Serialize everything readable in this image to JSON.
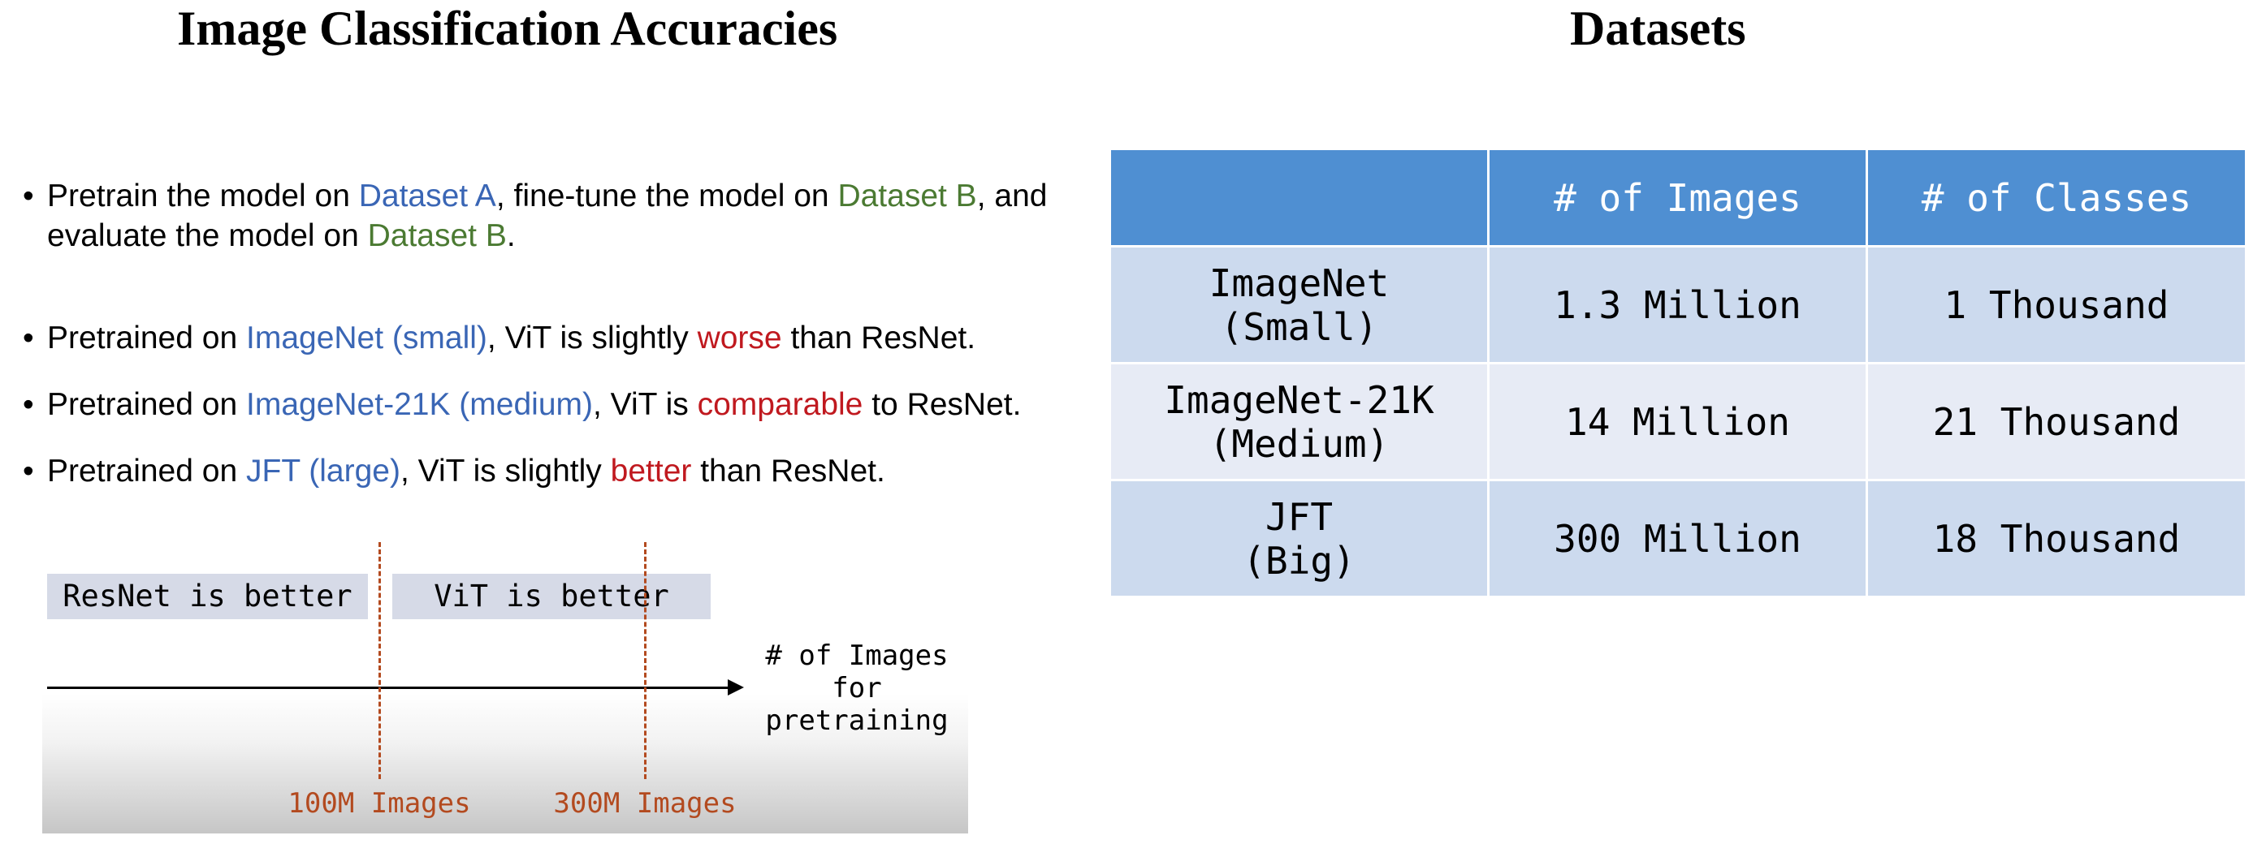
{
  "left": {
    "title": "Image Classification Accuracies",
    "bullets": [
      {
        "dot": "•",
        "segments": [
          {
            "text": "Pretrain the model on ",
            "color": ""
          },
          {
            "text": "Dataset A",
            "color": "blue"
          },
          {
            "text": ", fine-tune the model on ",
            "color": ""
          },
          {
            "text": "Dataset B",
            "color": "green"
          },
          {
            "text": ", and evaluate the model on ",
            "color": ""
          },
          {
            "text": "Dataset B",
            "color": "green"
          },
          {
            "text": ".",
            "color": ""
          }
        ]
      },
      {
        "dot": "•",
        "segments": [
          {
            "text": "Pretrained on ",
            "color": ""
          },
          {
            "text": "ImageNet (small)",
            "color": "blue"
          },
          {
            "text": ", ViT is slightly ",
            "color": ""
          },
          {
            "text": "worse",
            "color": "red"
          },
          {
            "text": " than ResNet.",
            "color": ""
          }
        ]
      },
      {
        "dot": "•",
        "segments": [
          {
            "text": "Pretrained on ",
            "color": ""
          },
          {
            "text": "ImageNet-21K (medium)",
            "color": "blue"
          },
          {
            "text": ", ViT is ",
            "color": ""
          },
          {
            "text": "comparable",
            "color": "red"
          },
          {
            "text": " to ResNet.",
            "color": ""
          }
        ]
      },
      {
        "dot": "•",
        "segments": [
          {
            "text": "Pretrained on ",
            "color": ""
          },
          {
            "text": "JFT (large)",
            "color": "blue"
          },
          {
            "text": ", ViT is slightly ",
            "color": ""
          },
          {
            "text": "better",
            "color": "red"
          },
          {
            "text": " than ResNet.",
            "color": ""
          }
        ]
      }
    ],
    "diagram": {
      "region_left": "ResNet is better",
      "region_right": "ViT is better",
      "axis_label_lines": [
        "# of Images",
        "for",
        "pretraining"
      ],
      "thresholds": [
        "100M Images",
        "300M Images"
      ]
    }
  },
  "right": {
    "title": "Datasets",
    "table": {
      "headers": [
        "",
        "# of Images",
        "# of Classes"
      ],
      "rows": [
        {
          "name_lines": [
            "ImageNet",
            "(Small)"
          ],
          "images": "1.3 Million",
          "classes": "1 Thousand"
        },
        {
          "name_lines": [
            "ImageNet-21K",
            "(Medium)"
          ],
          "images": "14 Million",
          "classes": "21 Thousand"
        },
        {
          "name_lines": [
            "JFT",
            "(Big)"
          ],
          "images": "300 Million",
          "classes": "18 Thousand"
        }
      ]
    }
  },
  "colors": {
    "blue": "#3a66b5",
    "green": "#4b7a32",
    "red": "#c0191f",
    "threshold": "#b34a1f",
    "table_header": "#4f8fd2",
    "table_row_dark": "#ccdaee",
    "table_row_light": "#e7ebf5",
    "region_label_bg": "#d6dae7"
  }
}
